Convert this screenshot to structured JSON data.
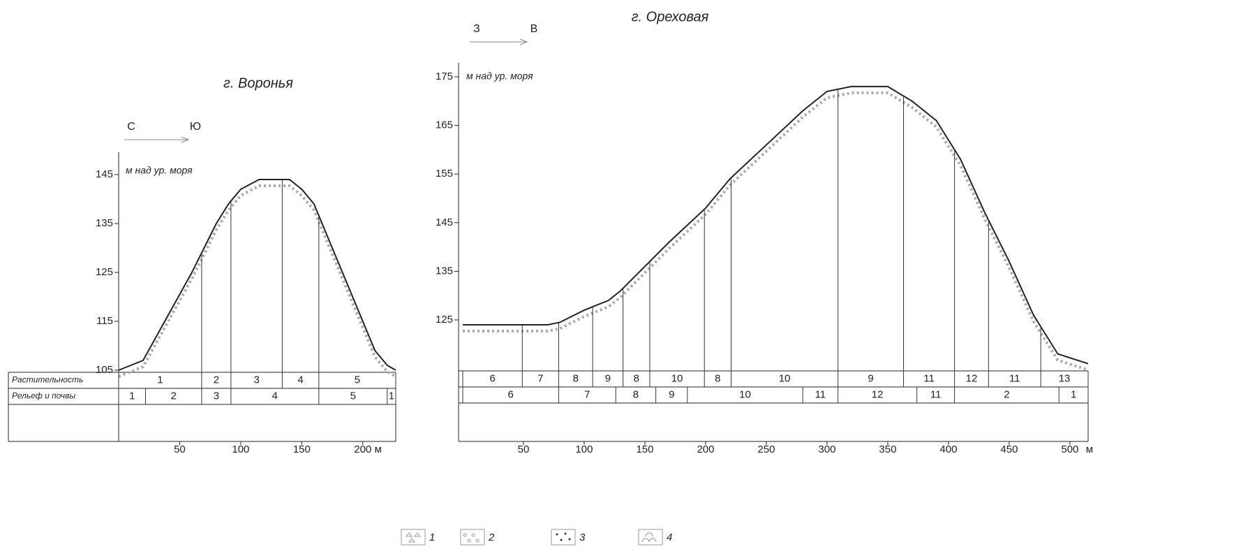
{
  "chart_data": [
    {
      "type": "line",
      "title": "г. Воронья",
      "direction": [
        "С",
        "Ю"
      ],
      "ylabel": "м над ур. моря",
      "x_unit": "м",
      "x": [
        0,
        20,
        40,
        60,
        70,
        80,
        90,
        100,
        115,
        140,
        150,
        160,
        170,
        180,
        190,
        200,
        210,
        220,
        227
      ],
      "values": [
        105,
        107,
        116,
        125,
        130,
        135,
        139,
        142,
        144,
        144,
        142,
        139,
        133,
        127,
        121,
        115,
        109,
        106,
        105
      ],
      "color": "#222222",
      "xlim": [
        0,
        227
      ],
      "ylim": [
        105,
        150
      ],
      "xticks": [
        50,
        100,
        150,
        200
      ],
      "yticks": [
        105,
        115,
        125,
        135,
        145
      ],
      "rows": [
        {
          "name": "Растительность",
          "boundaries": [
            0,
            68,
            92,
            134,
            164,
            227
          ],
          "labels": [
            "1",
            "2",
            "3",
            "4",
            "5"
          ]
        },
        {
          "name": "Рельеф и почвы",
          "boundaries": [
            0,
            22,
            68,
            92,
            164,
            220,
            227
          ],
          "labels": [
            "1",
            "2",
            "3",
            "4",
            "5",
            "1"
          ]
        }
      ]
    },
    {
      "type": "line",
      "title": "г. Ореховая",
      "direction": [
        "З",
        "В"
      ],
      "ylabel": "м над ур. моря",
      "x_unit": "м",
      "x": [
        0,
        40,
        70,
        80,
        100,
        120,
        130,
        150,
        170,
        200,
        220,
        250,
        280,
        300,
        320,
        350,
        370,
        390,
        410,
        430,
        450,
        470,
        490,
        515
      ],
      "values": [
        124,
        124,
        124,
        124.5,
        127,
        129,
        131,
        136,
        141,
        148,
        154,
        161,
        168,
        172,
        173,
        173,
        170,
        166,
        158,
        147,
        137,
        126,
        118,
        116
      ],
      "color": "#222222",
      "xlim": [
        0,
        515
      ],
      "ylim": [
        114.5,
        178
      ],
      "xticks": [
        50,
        100,
        150,
        200,
        250,
        300,
        350,
        400,
        450,
        500
      ],
      "yticks": [
        125,
        135,
        145,
        155,
        165,
        175
      ],
      "rows": [
        {
          "boundaries": [
            0,
            49,
            79,
            107,
            132,
            154,
            199,
            221,
            309,
            363,
            405,
            433,
            476,
            515
          ],
          "labels": [
            "6",
            "7",
            "8",
            "9",
            "8",
            "10",
            "8",
            "10",
            "9",
            "11",
            "12",
            "11",
            "13"
          ]
        },
        {
          "boundaries": [
            0,
            79,
            126,
            159,
            185,
            280,
            309,
            374,
            405,
            491,
            515
          ],
          "labels": [
            "6",
            "7",
            "8",
            "9",
            "10",
            "11",
            "12",
            "11",
            "2",
            "1"
          ]
        }
      ]
    }
  ],
  "legend": [
    "1",
    "2",
    "3",
    "4"
  ]
}
